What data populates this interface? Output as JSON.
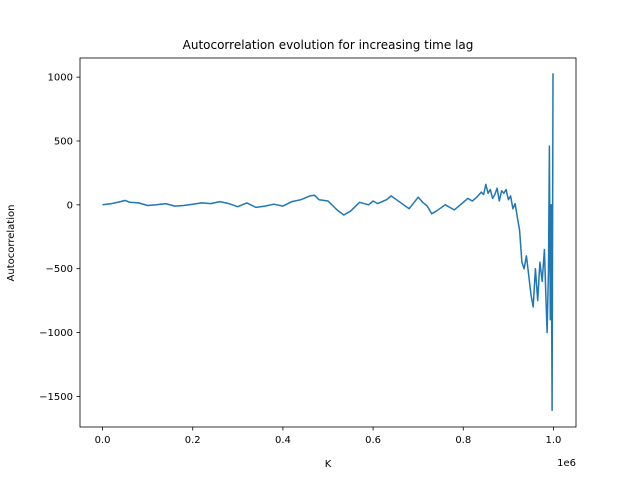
{
  "chart_data": {
    "type": "line",
    "title": "Autocorrelation evolution for increasing time lag",
    "xlabel": "K",
    "ylabel": "Autocorrelation",
    "x_offset_label": "1e6",
    "xlim": [
      -50000,
      1050000
    ],
    "ylim": [
      -1740,
      1150
    ],
    "x_ticks": [
      0,
      200000,
      400000,
      600000,
      800000,
      1000000
    ],
    "x_tick_labels": [
      "0.0",
      "0.2",
      "0.4",
      "0.6",
      "0.8",
      "1.0"
    ],
    "y_ticks": [
      -1500,
      -1000,
      -500,
      0,
      500,
      1000
    ],
    "y_tick_labels": [
      "−1500",
      "−1000",
      "−500",
      "0",
      "500",
      "1000"
    ],
    "grid": false,
    "series": [
      {
        "color": "#1f77b4",
        "x": [
          0,
          20000,
          40000,
          50000,
          60000,
          80000,
          100000,
          120000,
          140000,
          160000,
          180000,
          200000,
          220000,
          240000,
          260000,
          280000,
          300000,
          320000,
          340000,
          360000,
          380000,
          400000,
          420000,
          440000,
          460000,
          470000,
          480000,
          500000,
          520000,
          535000,
          550000,
          570000,
          590000,
          600000,
          610000,
          630000,
          640000,
          660000,
          680000,
          700000,
          710000,
          720000,
          730000,
          740000,
          760000,
          780000,
          800000,
          810000,
          820000,
          830000,
          840000,
          845000,
          850000,
          855000,
          860000,
          865000,
          870000,
          875000,
          880000,
          885000,
          890000,
          895000,
          900000,
          905000,
          910000,
          915000,
          920000,
          925000,
          930000,
          935000,
          940000,
          945000,
          950000,
          955000,
          960000,
          965000,
          970000,
          975000,
          980000,
          983000,
          986000,
          989000,
          991000,
          993000,
          995000,
          997000,
          999000
        ],
        "y": [
          0,
          10,
          25,
          35,
          20,
          15,
          -5,
          0,
          10,
          -10,
          -5,
          5,
          15,
          10,
          25,
          10,
          -15,
          15,
          -20,
          -10,
          5,
          -10,
          25,
          40,
          70,
          75,
          40,
          30,
          -40,
          -80,
          -50,
          20,
          0,
          30,
          10,
          40,
          70,
          20,
          -30,
          60,
          20,
          -10,
          -70,
          -50,
          0,
          -40,
          20,
          50,
          30,
          60,
          100,
          80,
          160,
          90,
          120,
          50,
          80,
          130,
          30,
          110,
          90,
          120,
          40,
          70,
          -30,
          10,
          -100,
          -200,
          -450,
          -500,
          -400,
          -550,
          -700,
          -800,
          -500,
          -750,
          -450,
          -600,
          -350,
          -700,
          -1000,
          -500,
          460,
          -900,
          0,
          -1610,
          1030
        ]
      }
    ]
  }
}
